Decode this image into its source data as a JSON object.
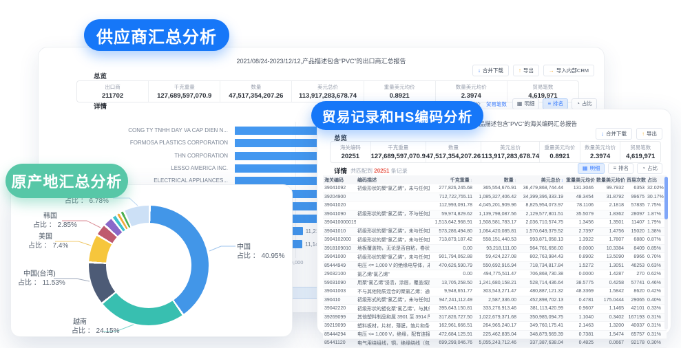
{
  "pills": {
    "supplier": "供应商汇总分析",
    "trade": "贸易记录和HS编码分析",
    "origin": "原产地汇总分析"
  },
  "colors": {
    "pill_blue": "#1677F8",
    "pill_green": "#57C7A7",
    "bar_blue": "#4498F0",
    "link_blue": "#3D7FFF",
    "count_red": "#E8584A"
  },
  "icons": {
    "merge_download": "↓",
    "export": "↑",
    "import_crm": "→",
    "detail": "▦",
    "rank": "≡",
    "ratio": "◔",
    "sort": "↕"
  },
  "back_panel": {
    "title": "2021/08/24-2023/12/12,产品描述包含“PVC”的出口商汇总报告",
    "overview_label": "总览",
    "detail_label": "详情",
    "buttons": {
      "merge_download": "合并下载",
      "export": "导出",
      "import_crm": "导入内部CRM"
    },
    "stats": [
      {
        "label": "出口商",
        "value": "211702"
      },
      {
        "label": "千克重量",
        "value": "127,689,597,070.9"
      },
      {
        "label": "数量",
        "value": "47,517,354,207.26"
      },
      {
        "label": "美元总价",
        "value": "113,917,283,678.74"
      },
      {
        "label": "重量美元均价",
        "value": "0.8921"
      },
      {
        "label": "数量美元均价",
        "value": "2.3974"
      },
      {
        "label": "贸易笔数",
        "value": "4,619,971"
      }
    ],
    "metric_tabs": [
      {
        "label": "美元总价",
        "active": false
      },
      {
        "label": "贸易笔数",
        "active": true
      }
    ],
    "view_tabs": [
      {
        "label": "明细",
        "active": false,
        "icon": "detail"
      },
      {
        "label": "排名",
        "active": true,
        "icon": "rank"
      },
      {
        "label": "占比",
        "active": false,
        "icon": "ratio"
      }
    ]
  },
  "hs_panel": {
    "title": "2021/08/24-2023/12/12,产品描述包含“PVC”的海关编码汇总报告",
    "overview_label": "总览",
    "detail_label": "详情",
    "match_prefix": "共匹配到",
    "match_count": "20251",
    "match_suffix": "条记录",
    "buttons": {
      "merge_download": "合并下载",
      "export": "导出"
    },
    "stats": [
      {
        "label": "海关编码",
        "value": "20251"
      },
      {
        "label": "千克重量",
        "value": "127,689,597,070.9"
      },
      {
        "label": "数量",
        "value": "47,517,354,207.26"
      },
      {
        "label": "美元总价",
        "value": "113,917,283,678.74"
      },
      {
        "label": "重量美元均价",
        "value": "0.8921"
      },
      {
        "label": "数量美元均价",
        "value": "2.3974"
      },
      {
        "label": "贸易笔数",
        "value": "4,619,971"
      }
    ],
    "view_tabs": [
      {
        "label": "明细",
        "active": true,
        "icon": "detail"
      },
      {
        "label": "排名",
        "active": false,
        "icon": "rank"
      },
      {
        "label": "占比",
        "active": false,
        "icon": "ratio"
      }
    ],
    "table": {
      "columns": [
        {
          "label": "海关编码",
          "sort": "none",
          "align": "left"
        },
        {
          "label": "编码描述",
          "sort": "none",
          "align": "left"
        },
        {
          "label": "千克重量",
          "sort": "inactive",
          "align": "right"
        },
        {
          "label": "数量",
          "sort": "inactive",
          "align": "right"
        },
        {
          "label": "美元总价",
          "sort": "active",
          "align": "right"
        },
        {
          "label": "重量美元均价",
          "sort": "none",
          "align": "right"
        },
        {
          "label": "数量美元均价",
          "sort": "none",
          "align": "right"
        },
        {
          "label": "贸易次数",
          "sort": "inactive",
          "align": "right"
        },
        {
          "label": "占比",
          "sort": "none",
          "align": "left"
        }
      ],
      "rows": [
        [
          "39041092",
          "初级形状的聚“氯乙烯”，未与任何其他物质混合：其他：粉末",
          "277,826,245.68",
          "365,554,676.91",
          "36,479,868,744.44",
          "131.3046",
          "99.7932",
          "6353",
          "32.02%"
        ],
        [
          "39204900",
          "",
          "712,722,755.11",
          "1,085,327,406.42",
          "34,399,396,333.19",
          "48.3454",
          "31.8792",
          "99675",
          "30.17%"
        ],
        [
          "39041020",
          "",
          "112,993,091.78",
          "4,045,201,909.96",
          "8,825,954,073.97",
          "78.1106",
          "2.1818",
          "57835",
          "7.75%"
        ],
        [
          "39041090",
          "初级形状的聚“氯乙烯”，不与任何其他物质混合：其他型（氯乙烯）…",
          "59,974,829.62",
          "1,139,798,087.56",
          "2,129,577,801.51",
          "35.5079",
          "1.8362",
          "28097",
          "1.87%"
        ],
        [
          "390410000019",
          "",
          "1,513,642,968.91",
          "1,508,581,783.17",
          "2,036,710,574.75",
          "1.3456",
          "1.3501",
          "11407",
          "1.79%"
        ],
        [
          "39041010",
          "初级形状的聚“氯乙烯”，未与任何其他物质混合：乳液级 PVC 树脂/PV…",
          "573,286,494.80",
          "1,064,420,085.81",
          "1,570,649,379.52",
          "2.7397",
          "1.4756",
          "15020",
          "1.38%"
        ],
        [
          "3904102000",
          "初级形状的聚“氯乙烯”，未与任何其他物质混合：悬浮级 PVC 树脂",
          "713,879,187.42",
          "558,151,440.53",
          "993,871,058.13",
          "1.3922",
          "1.7807",
          "6880",
          "0.87%"
        ],
        [
          "3918109010",
          "地板覆盖物，无论是否自粘，卷状或瓷砖形式，以及墙壁或天花板覆盖…",
          "0.00",
          "93,218,111.00",
          "964,761,656.00",
          "0.0000",
          "10.3384",
          "8409",
          "0.85%"
        ],
        [
          "39041000",
          "初级形状的聚“氯乙烯”，未与任何其他物质混合 + 未提供详细标签 +",
          "901,794,062.88",
          "59,424,227.08",
          "802,763,984.43",
          "0.8902",
          "13.5090",
          "8966",
          "0.70%"
        ],
        [
          "85444949",
          "电压 <= 1,000 V 的绝缘电导体，未安装连接器，其他绝缘（包括漆包…",
          "470,626,590.79",
          "550,692,916.94",
          "718,734,817.84",
          "1.5272",
          "1.3051",
          "46253",
          "0.63%"
        ],
        [
          "29032100",
          "氯乙烯“氯乙烯”",
          "0.00",
          "494,775,511.47",
          "706,868,730.38",
          "0.0000",
          "1.4287",
          "270",
          "0.62%"
        ],
        [
          "59031090",
          "用聚“氯乙烯”浸渍，涂层，覆盖或层压的纺织织物（不包括用聚“氯乙…",
          "13,705,258.50",
          "1,241,680,158.21",
          "528,714,436.64",
          "38.5775",
          "0.4258",
          "57741",
          "0.46%"
        ],
        [
          "39041003",
          "不与其他物质混合的聚氯乙烯：通过本体或悬浮聚合工艺获得的聚氯乙…",
          "9,948,651.77",
          "303,543,271.47",
          "480,887,121.32",
          "48.3369",
          "1.5842",
          "8620",
          "0.42%"
        ],
        [
          "390410",
          "初级形式的聚“氯乙烯”，未与任何其他物质混合 + 未提供详细标签 +",
          "947,241,112.49",
          "2,587,336.00",
          "452,898,702.13",
          "0.4781",
          "175.0444",
          "29065",
          "0.40%"
        ],
        [
          "39042220",
          "初级形状的塑化聚“氯乙烯”，与其他物质混合：颗粒",
          "395,643,150.81",
          "333,276,913.46",
          "381,113,420.99",
          "0.9607",
          "1.1465",
          "42101",
          "0.33%"
        ],
        [
          "39269099",
          "其他塑料制品和属 3901 至 3914 所列的其他塑料制品（不包括 9619…",
          "317,826,727.50",
          "1,022,679,371.68",
          "350,985,094.75",
          "1.1040",
          "0.3402",
          "167193",
          "0.31%"
        ],
        [
          "39219099",
          "塑料板材，片材，薄膜，箔片和条带，经过增强，层压，支撑或与其他…",
          "162,961,666.51",
          "264,965,240.17",
          "349,760,175.41",
          "2.1463",
          "1.3200",
          "40037",
          "0.31%"
        ],
        [
          "85444294",
          "电压 <= 1,000 V，绝缘，配有连接器的电导体，其他：电压不超过 1…",
          "472,684,125.91",
          "225,462,835.04",
          "348,879,569.39",
          "0.7381",
          "1.5474",
          "65757",
          "0.31%"
        ],
        [
          "85441120",
          "电气用绕组线，铜，绝缘绕线（包括漆包或阳极氧化）电缆，电线（包…",
          "699,299,046.76",
          "5,055,243,712.46",
          "337,387,638.04",
          "0.4825",
          "0.0667",
          "92178",
          "0.30%"
        ]
      ]
    }
  },
  "chart_data": [
    {
      "type": "bar",
      "orientation": "horizontal",
      "series_name": "贸易笔数",
      "categories": [
        "CONG TY TNHH DAY VA CAP DIEN N...",
        "FORMOSA PLASTICS CORPORATION",
        "THN CORPORATION",
        "LESSO AMERICA INC.",
        "ELECTRICAL APPLIANCES...",
        "",
        "",
        "",
        "",
        ""
      ],
      "values": [
        44000,
        39500,
        35000,
        30500,
        27000,
        22000,
        17000,
        14000,
        11217,
        11148
      ],
      "value_labels": [
        "",
        "",
        "",
        "",
        "",
        "",
        "",
        "",
        "11,217",
        "11,148"
      ],
      "x_ticks": [
        "0",
        "10,000",
        "20,000",
        "30,000",
        "40,000",
        "50,000"
      ],
      "x_tick_values": [
        0,
        10000,
        20000,
        30000,
        40000,
        50000
      ],
      "xlim": [
        0,
        59000
      ],
      "bar_color": "#4498F0",
      "grid": true,
      "note": "bars 1-8 partially hidden behind overlapping panels; lengths estimated"
    },
    {
      "type": "pie",
      "subtype": "donut",
      "slices": [
        {
          "name": "中国",
          "pct": 40.95,
          "color": "#4296E8",
          "label": "占比 ： 40.95%"
        },
        {
          "name": "越南",
          "pct": 24.15,
          "color": "#38BFB0",
          "label": "占比 ： 24.15%"
        },
        {
          "name": "中国(台湾)",
          "pct": 11.53,
          "color": "#4D5B76",
          "label": "占比 ： 11.53%"
        },
        {
          "name": "美国",
          "pct": 7.4,
          "color": "#F6C63C",
          "label": "占比 ： 7.4%"
        },
        {
          "name": "韩国",
          "pct": 2.85,
          "color": "#BF5A6E",
          "label": "占比 ： 2.85%"
        },
        {
          "name": "",
          "pct": 2.2,
          "color": "#8A68C9",
          "label": ""
        },
        {
          "name": "",
          "pct": 0.9,
          "color": "#3FC3CE",
          "label": ""
        },
        {
          "name": "",
          "pct": 0.6,
          "color": "#F2A93B",
          "label": ""
        },
        {
          "name": "",
          "pct": 0.6,
          "color": "#4CAF50",
          "label": ""
        },
        {
          "name": "",
          "pct": 6.78,
          "color": "#CCE0F6",
          "label": "占比 ： 6.78%"
        }
      ]
    }
  ]
}
